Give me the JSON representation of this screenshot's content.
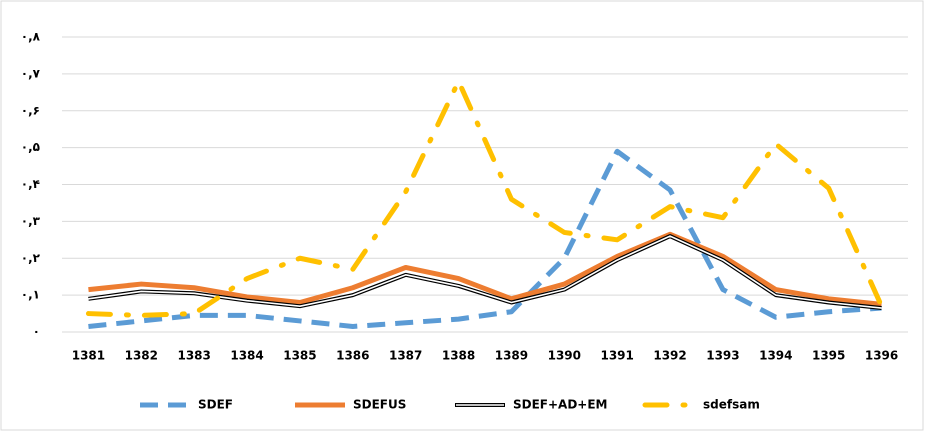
{
  "chart_data": {
    "type": "line",
    "categories": [
      "1381",
      "1382",
      "1383",
      "1384",
      "1385",
      "1386",
      "1387",
      "1388",
      "1389",
      "1390",
      "1391",
      "1392",
      "1393",
      "1394",
      "1395",
      "1396"
    ],
    "series": [
      {
        "name": "SDEF",
        "color": "#5b9bd5",
        "style": "dashed",
        "values": [
          0.015,
          0.03,
          0.045,
          0.045,
          0.03,
          0.015,
          0.025,
          0.035,
          0.055,
          0.2,
          0.49,
          0.385,
          0.115,
          0.04,
          0.055,
          0.065
        ]
      },
      {
        "name": "SDEFUS",
        "color": "#ed7d31",
        "style": "solid",
        "values": [
          0.115,
          0.13,
          0.12,
          0.095,
          0.08,
          0.12,
          0.175,
          0.145,
          0.09,
          0.13,
          0.205,
          0.265,
          0.205,
          0.115,
          0.09,
          0.075
        ]
      },
      {
        "name": "SDEF+AD+EM",
        "color": "#000000",
        "style": "double",
        "values": [
          0.09,
          0.11,
          0.105,
          0.085,
          0.07,
          0.1,
          0.155,
          0.125,
          0.08,
          0.115,
          0.195,
          0.26,
          0.195,
          0.1,
          0.08,
          0.065
        ]
      },
      {
        "name": "sdefsam",
        "color": "#ffc000",
        "style": "dashdot",
        "values": [
          0.05,
          0.045,
          0.05,
          0.145,
          0.2,
          0.17,
          0.38,
          0.68,
          0.36,
          0.27,
          0.25,
          0.34,
          0.31,
          0.51,
          0.39,
          0.07
        ]
      }
    ],
    "ylim": [
      0,
      0.8
    ],
    "yticks": [
      {
        "value": 0,
        "label": "۰"
      },
      {
        "value": 0.1,
        "label": "۰,۱"
      },
      {
        "value": 0.2,
        "label": "۰,۲"
      },
      {
        "value": 0.3,
        "label": "۰,۳"
      },
      {
        "value": 0.4,
        "label": "۰,۴"
      },
      {
        "value": 0.5,
        "label": "۰,۵"
      },
      {
        "value": 0.6,
        "label": "۰,۶"
      },
      {
        "value": 0.7,
        "label": "۰,۷"
      },
      {
        "value": 0.8,
        "label": "۰,۸"
      }
    ],
    "grid": true,
    "legend": "bottom"
  }
}
